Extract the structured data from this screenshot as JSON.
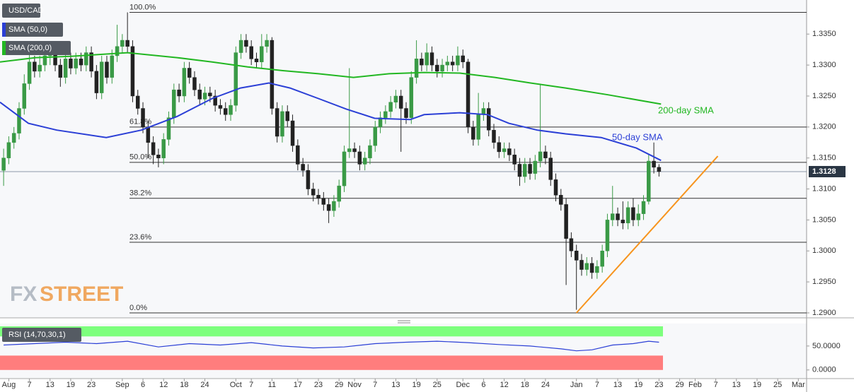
{
  "chart_data": {
    "type": "candlestick",
    "title": "USD/CAD",
    "xlim": [
      -0.7,
      155.6
    ],
    "ylim": [
      1.2892,
      1.3405
    ],
    "yticks": [
      {
        "value": 1.29,
        "label": "1.2900"
      },
      {
        "value": 1.295,
        "label": "1.2950"
      },
      {
        "value": 1.3,
        "label": "1.3000"
      },
      {
        "value": 1.305,
        "label": "1.3050"
      },
      {
        "value": 1.31,
        "label": "1.3100"
      },
      {
        "value": 1.315,
        "label": "1.3150"
      },
      {
        "value": 1.32,
        "label": "1.3200"
      },
      {
        "value": 1.325,
        "label": "1.3250"
      },
      {
        "value": 1.33,
        "label": "1.3300"
      },
      {
        "value": 1.335,
        "label": "1.3350"
      }
    ],
    "xticks": [
      {
        "value": 1,
        "label": "Aug"
      },
      {
        "value": 5,
        "label": "7"
      },
      {
        "value": 9,
        "label": "13"
      },
      {
        "value": 13,
        "label": "19"
      },
      {
        "value": 17,
        "label": "23"
      },
      {
        "value": 23,
        "label": "Sep"
      },
      {
        "value": 27,
        "label": "6"
      },
      {
        "value": 31,
        "label": "12"
      },
      {
        "value": 35,
        "label": "18"
      },
      {
        "value": 39,
        "label": "24"
      },
      {
        "value": 45,
        "label": "Oct"
      },
      {
        "value": 48,
        "label": "7"
      },
      {
        "value": 52,
        "label": "11"
      },
      {
        "value": 57,
        "label": "17"
      },
      {
        "value": 61,
        "label": "23"
      },
      {
        "value": 65,
        "label": "29"
      },
      {
        "value": 68,
        "label": "Nov"
      },
      {
        "value": 72,
        "label": "7"
      },
      {
        "value": 76,
        "label": "13"
      },
      {
        "value": 80,
        "label": "19"
      },
      {
        "value": 84,
        "label": "25"
      },
      {
        "value": 89,
        "label": "Dec"
      },
      {
        "value": 93,
        "label": "6"
      },
      {
        "value": 97,
        "label": "12"
      },
      {
        "value": 101,
        "label": "18"
      },
      {
        "value": 105,
        "label": "24"
      },
      {
        "value": 111,
        "label": "Jan"
      },
      {
        "value": 115,
        "label": "7"
      },
      {
        "value": 119,
        "label": "13"
      },
      {
        "value": 123,
        "label": "19"
      },
      {
        "value": 127,
        "label": "23"
      },
      {
        "value": 131,
        "label": "29"
      },
      {
        "value": 134,
        "label": "Feb"
      },
      {
        "value": 138,
        "label": "7"
      },
      {
        "value": 142,
        "label": "13"
      },
      {
        "value": 146,
        "label": "19"
      },
      {
        "value": 150,
        "label": "25"
      },
      {
        "value": 154,
        "label": "Mar"
      }
    ],
    "up_color": "#3a9a46",
    "down_color": "#222222",
    "open": [
      1.313,
      1.315,
      1.3175,
      1.319,
      1.323,
      1.327,
      1.3305,
      1.329,
      1.33,
      1.3315,
      1.332,
      1.33,
      1.328,
      1.331,
      1.3295,
      1.331,
      1.33,
      1.332,
      1.329,
      1.3255,
      1.3305,
      1.328,
      1.3315,
      1.333,
      1.334,
      1.333,
      1.325,
      1.323,
      1.32,
      1.3175,
      1.3155,
      1.315,
      1.318,
      1.3215,
      1.326,
      1.325,
      1.3295,
      1.328,
      1.326,
      1.3245,
      1.3255,
      1.325,
      1.3235,
      1.323,
      1.322,
      1.3235,
      1.332,
      1.334,
      1.333,
      1.331,
      1.3305,
      1.333,
      1.334,
      1.323,
      1.3185,
      1.3225,
      1.321,
      1.317,
      1.314,
      1.313,
      1.31,
      1.309,
      1.3085,
      1.3075,
      1.3065,
      1.308,
      1.3105,
      1.316,
      1.3165,
      1.316,
      1.314,
      1.315,
      1.317,
      1.32,
      1.3215,
      1.3225,
      1.324,
      1.325,
      1.323,
      1.3215,
      1.328,
      1.331,
      1.33,
      1.332,
      1.33,
      1.329,
      1.33,
      1.3305,
      1.33,
      1.3315,
      1.3305,
      1.32,
      1.318,
      1.322,
      1.323,
      1.3195,
      1.3175,
      1.316,
      1.3165,
      1.3155,
      1.314,
      1.312,
      1.314,
      1.3125,
      1.3145,
      1.316,
      1.315,
      1.3115,
      1.309,
      1.3075,
      1.302,
      1.3,
      1.2985,
      1.297,
      1.298,
      1.2965,
      1.2975,
      1.3,
      1.305,
      1.306,
      1.305,
      1.3045,
      1.307,
      1.305,
      1.306,
      1.308,
      1.3145,
      1.3135
    ],
    "high": [
      1.3165,
      1.3185,
      1.32,
      1.324,
      1.3285,
      1.332,
      1.3315,
      1.3315,
      1.333,
      1.3335,
      1.333,
      1.331,
      1.332,
      1.332,
      1.332,
      1.332,
      1.333,
      1.333,
      1.33,
      1.3315,
      1.3315,
      1.3325,
      1.3365,
      1.335,
      1.3385,
      1.334,
      1.326,
      1.324,
      1.321,
      1.3185,
      1.3165,
      1.319,
      1.3225,
      1.327,
      1.327,
      1.3305,
      1.3305,
      1.329,
      1.327,
      1.3265,
      1.3265,
      1.326,
      1.3245,
      1.324,
      1.3245,
      1.333,
      1.335,
      1.335,
      1.334,
      1.332,
      1.335,
      1.335,
      1.3345,
      1.324,
      1.3235,
      1.3235,
      1.322,
      1.318,
      1.315,
      1.314,
      1.311,
      1.31,
      1.3095,
      1.3085,
      1.309,
      1.3115,
      1.317,
      1.3295,
      1.3175,
      1.317,
      1.316,
      1.318,
      1.321,
      1.3225,
      1.3235,
      1.325,
      1.326,
      1.326,
      1.324,
      1.329,
      1.334,
      1.332,
      1.3335,
      1.333,
      1.331,
      1.331,
      1.3315,
      1.3315,
      1.333,
      1.3325,
      1.331,
      1.321,
      1.3255,
      1.324,
      1.324,
      1.3205,
      1.3185,
      1.3175,
      1.3175,
      1.3165,
      1.315,
      1.315,
      1.315,
      1.3155,
      1.327,
      1.317,
      1.316,
      1.3125,
      1.31,
      1.3085,
      1.303,
      1.301,
      1.2995,
      1.299,
      1.299,
      1.2985,
      1.301,
      1.306,
      1.3105,
      1.307,
      1.308,
      1.308,
      1.3085,
      1.3075,
      1.309,
      1.3155,
      1.3175,
      1.314
    ],
    "low": [
      1.3105,
      1.314,
      1.3165,
      1.318,
      1.322,
      1.326,
      1.328,
      1.328,
      1.329,
      1.33,
      1.329,
      1.3265,
      1.327,
      1.3285,
      1.3285,
      1.329,
      1.329,
      1.328,
      1.3245,
      1.3245,
      1.327,
      1.327,
      1.3305,
      1.332,
      1.332,
      1.324,
      1.322,
      1.319,
      1.315,
      1.314,
      1.3135,
      1.314,
      1.317,
      1.3205,
      1.324,
      1.324,
      1.327,
      1.325,
      1.3235,
      1.3235,
      1.324,
      1.3225,
      1.322,
      1.321,
      1.321,
      1.3225,
      1.331,
      1.332,
      1.33,
      1.3295,
      1.3295,
      1.332,
      1.322,
      1.3175,
      1.3175,
      1.32,
      1.316,
      1.313,
      1.312,
      1.309,
      1.308,
      1.3075,
      1.3065,
      1.3045,
      1.3055,
      1.307,
      1.3095,
      1.315,
      1.315,
      1.313,
      1.313,
      1.314,
      1.316,
      1.319,
      1.3205,
      1.3215,
      1.323,
      1.316,
      1.3205,
      1.3205,
      1.327,
      1.329,
      1.329,
      1.329,
      1.328,
      1.328,
      1.329,
      1.329,
      1.329,
      1.3295,
      1.319,
      1.317,
      1.317,
      1.321,
      1.3185,
      1.3165,
      1.315,
      1.315,
      1.3145,
      1.313,
      1.3105,
      1.311,
      1.3115,
      1.3115,
      1.3135,
      1.314,
      1.3105,
      1.308,
      1.3065,
      1.2945,
      1.299,
      1.2905,
      1.296,
      1.296,
      1.2955,
      1.2955,
      1.2965,
      1.299,
      1.304,
      1.304,
      1.3035,
      1.3035,
      1.304,
      1.304,
      1.305,
      1.3075,
      1.3125,
      1.312
    ],
    "close": [
      1.315,
      1.3175,
      1.319,
      1.323,
      1.327,
      1.3305,
      1.329,
      1.33,
      1.3315,
      1.332,
      1.33,
      1.328,
      1.331,
      1.3295,
      1.331,
      1.33,
      1.332,
      1.329,
      1.3255,
      1.3305,
      1.328,
      1.3315,
      1.333,
      1.334,
      1.333,
      1.325,
      1.323,
      1.32,
      1.3175,
      1.3155,
      1.315,
      1.318,
      1.3215,
      1.326,
      1.325,
      1.3295,
      1.328,
      1.326,
      1.3245,
      1.3255,
      1.325,
      1.3235,
      1.323,
      1.322,
      1.3235,
      1.332,
      1.334,
      1.333,
      1.331,
      1.3305,
      1.333,
      1.334,
      1.323,
      1.3185,
      1.3225,
      1.321,
      1.317,
      1.314,
      1.313,
      1.31,
      1.309,
      1.3085,
      1.3075,
      1.3065,
      1.308,
      1.3105,
      1.316,
      1.3165,
      1.316,
      1.314,
      1.315,
      1.317,
      1.32,
      1.3215,
      1.3225,
      1.324,
      1.325,
      1.323,
      1.3215,
      1.328,
      1.331,
      1.33,
      1.332,
      1.33,
      1.329,
      1.33,
      1.3305,
      1.33,
      1.3315,
      1.3305,
      1.32,
      1.318,
      1.322,
      1.323,
      1.3195,
      1.3175,
      1.316,
      1.3165,
      1.3155,
      1.314,
      1.312,
      1.314,
      1.3125,
      1.3145,
      1.316,
      1.315,
      1.3115,
      1.309,
      1.3075,
      1.302,
      1.3,
      1.2985,
      1.297,
      1.298,
      1.2965,
      1.2975,
      1.3,
      1.305,
      1.306,
      1.305,
      1.3045,
      1.307,
      1.305,
      1.306,
      1.308,
      1.3145,
      1.3135,
      1.3128
    ],
    "last_price": 1.3128,
    "series": [
      {
        "name": "SMA (50,0)",
        "color": "#2b3fd6",
        "x": [
          -0.7,
          4.8,
          10.3,
          19.9,
          26.7,
          33.6,
          40.4,
          45.9,
          51.4,
          55.5,
          61,
          66.4,
          71.9,
          78.8,
          81.5,
          88.4,
          93.8,
          97.9,
          103.4,
          108.9,
          115.8,
          122.6,
          127.4
        ],
        "values": [
          1.324,
          1.3206,
          1.3195,
          1.3183,
          1.3195,
          1.3217,
          1.3246,
          1.3263,
          1.3271,
          1.3263,
          1.3246,
          1.3229,
          1.3214,
          1.3212,
          1.322,
          1.3223,
          1.322,
          1.3206,
          1.3195,
          1.3189,
          1.3183,
          1.3166,
          1.3146
        ]
      },
      {
        "name": "SMA (200,0)",
        "color": "#22b722",
        "x": [
          -0.7,
          6.2,
          13,
          24,
          33.6,
          40.4,
          47.3,
          54.1,
          61,
          67.8,
          74.7,
          81.5,
          88.4,
          95.2,
          102.1,
          108.9,
          117.1,
          127.4
        ],
        "values": [
          1.3305,
          1.3312,
          1.3314,
          1.332,
          1.3312,
          1.3305,
          1.3297,
          1.3291,
          1.3286,
          1.328,
          1.3286,
          1.3288,
          1.3287,
          1.328,
          1.3271,
          1.3263,
          1.3252,
          1.3237
        ]
      }
    ],
    "annotations": [
      "200-day SMA",
      "50-day SMA"
    ],
    "trendline": {
      "color": "#f7941d",
      "x": [
        111,
        138.4
      ],
      "values": [
        1.29,
        1.3153
      ]
    },
    "fib_levels": [
      {
        "label": "100.0%",
        "value": 1.3385
      },
      {
        "label": "61.8%",
        "value": 1.32
      },
      {
        "label": "50.0%",
        "value": 1.3143
      },
      {
        "label": "38.2%",
        "value": 1.3085
      },
      {
        "label": "23.6%",
        "value": 1.3014
      },
      {
        "label": "0.0%",
        "value": 1.29
      }
    ],
    "watermark": [
      "FX",
      "STREET"
    ],
    "rsi": {
      "name": "RSI (14,70,30,1)",
      "color": "#2b3fd6",
      "ylim": [
        -18,
        97
      ],
      "upper": 70,
      "lower": 30,
      "upper_color": "#7dff7d",
      "lower_color": "#ff7d7d",
      "yticks": [
        {
          "value": 50,
          "label": "50.0000"
        },
        {
          "value": 0,
          "label": "0.0000"
        }
      ],
      "x": [
        0,
        6,
        12,
        18,
        24,
        30,
        36,
        42,
        48,
        54,
        60,
        66,
        72,
        78,
        84,
        90,
        96,
        102,
        108,
        111,
        114,
        118,
        122,
        125,
        127
      ],
      "values": [
        52,
        55,
        58,
        55,
        60,
        48,
        55,
        52,
        57,
        50,
        46,
        48,
        55,
        58,
        60,
        57,
        53,
        50,
        44,
        40,
        42,
        52,
        55,
        60,
        58
      ]
    }
  }
}
